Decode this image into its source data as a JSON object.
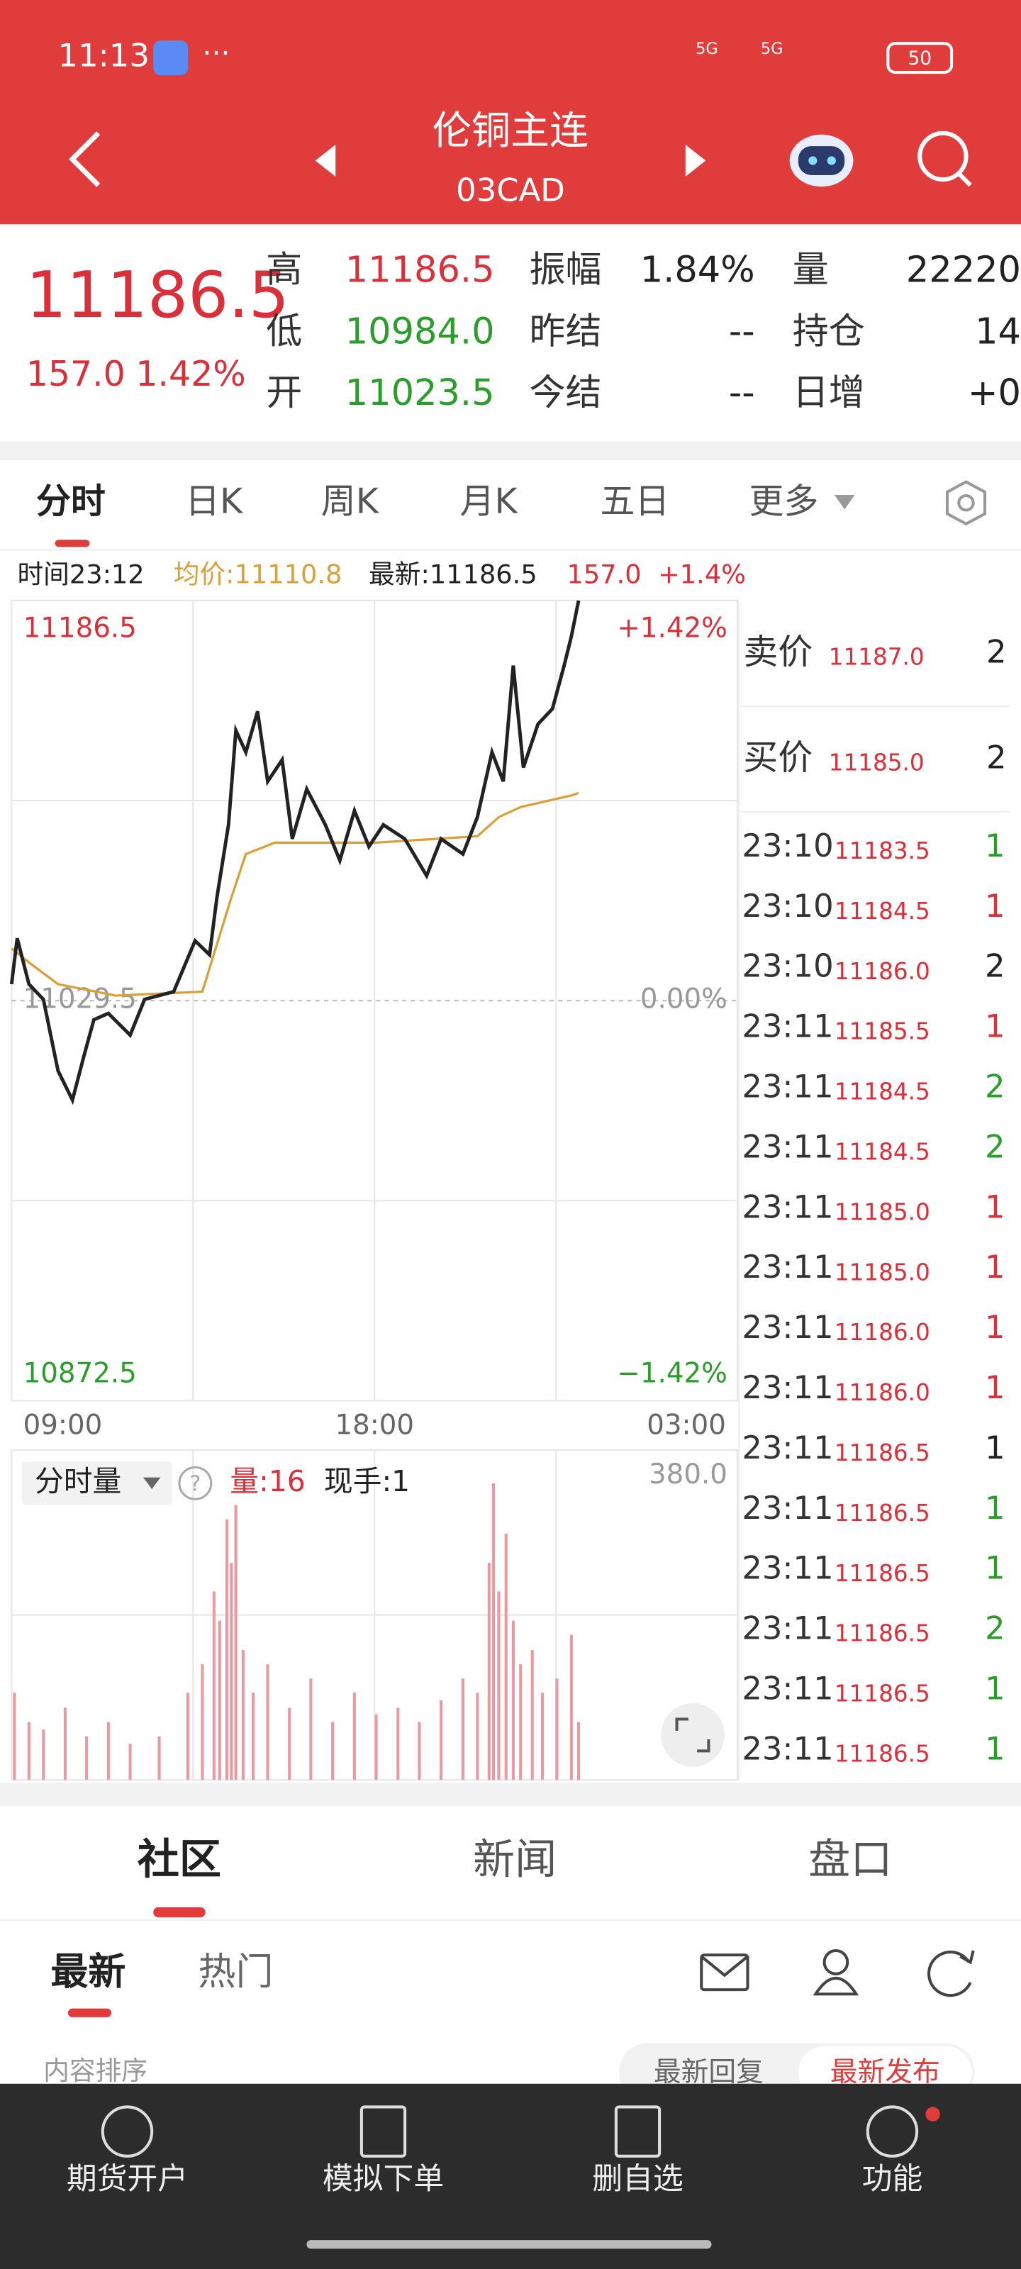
{
  "status_bar": {
    "time": "11:13",
    "network": "5G",
    "network2": "5G",
    "battery": "50"
  },
  "header": {
    "title": "伦铜主连",
    "code": "03CAD"
  },
  "quote": {
    "price": "11186.5",
    "change": "157.0",
    "change_pct": "1.42%",
    "stats": [
      [
        {
          "label": "高",
          "value": "11186.5",
          "color": "#d9303a"
        },
        {
          "label": "振幅",
          "value": "1.84%",
          "color": "#222222"
        },
        {
          "label": "量",
          "value": "22220",
          "color": "#222222"
        }
      ],
      [
        {
          "label": "低",
          "value": "10984.0",
          "color": "#2a9d2a"
        },
        {
          "label": "昨结",
          "value": "--",
          "color": "#222222"
        },
        {
          "label": "持仓",
          "value": "14",
          "color": "#222222"
        }
      ],
      [
        {
          "label": "开",
          "value": "11023.5",
          "color": "#2a9d2a"
        },
        {
          "label": "今结",
          "value": "--",
          "color": "#222222"
        },
        {
          "label": "日增",
          "value": "+0",
          "color": "#222222"
        }
      ]
    ]
  },
  "chart_tabs": [
    "分时",
    "日K",
    "周K",
    "月K",
    "五日",
    "更多"
  ],
  "info_bar": {
    "time": "时间23:12",
    "avg": "均价:11110.8",
    "latest": "最新:11186.5",
    "change": "157.0",
    "change_pct": "+1.4%"
  },
  "chart_data": [
    {
      "type": "line",
      "xlim": [
        0,
        18
      ],
      "xticks": [
        {
          "value": 0,
          "label": "09:00"
        },
        {
          "value": 9,
          "label": "18:00"
        },
        {
          "value": 18,
          "label": "03:00"
        }
      ],
      "ylim": [
        10872.5,
        11186.5
      ],
      "yticks": [
        {
          "value": 11186.5,
          "label": "11186.5"
        },
        {
          "value": 11029.5,
          "label": "11029.5"
        },
        {
          "value": 10872.5,
          "label": "10872.5"
        }
      ],
      "y2lim": [
        -1.42,
        1.42
      ],
      "y2ticks": [
        {
          "value": 1.42,
          "label": "+1.42%"
        },
        {
          "value": 0,
          "label": "0.00%"
        },
        {
          "value": -1.42,
          "label": "−1.42%"
        }
      ],
      "series": [
        {
          "color": "#222222",
          "x": [
            0,
            0.14,
            0.43,
            0.79,
            1.15,
            1.51,
            1.79,
            2.04,
            2.4,
            2.94,
            3.3,
            4.02,
            4.55,
            4.91,
            5.09,
            5.38,
            5.56,
            5.81,
            6.1,
            6.35,
            6.71,
            6.96,
            7.32,
            7.78,
            8.14,
            8.5,
            8.86,
            9.22,
            9.75,
            10.29,
            10.65,
            11.19,
            11.55,
            11.91,
            12.19,
            12.44,
            12.69,
            13.05,
            13.41,
            13.7,
            13.88,
            14.06
          ],
          "values": [
            11036,
            11054,
            11036,
            11030,
            11002,
            10990.5,
            11007.5,
            11022,
            11024.5,
            11016,
            11030,
            11033,
            11053,
            11047.5,
            11070,
            11098.5,
            11135.5,
            11127,
            11143,
            11115.5,
            11124,
            11093,
            11112.5,
            11098.5,
            11084.5,
            11104,
            11090,
            11098.5,
            11093,
            11078.5,
            11093,
            11087,
            11101.5,
            11127,
            11115.5,
            11161,
            11121,
            11138,
            11144,
            11161,
            11172.5,
            11186.5
          ]
        },
        {
          "color": "#d9a03a",
          "x": [
            0,
            0.43,
            1.15,
            2.58,
            4.73,
            5.45,
            5.81,
            6.53,
            9.04,
            11.55,
            12.08,
            12.62,
            13.88,
            14.06
          ],
          "values": [
            11050,
            11044.5,
            11036,
            11031.5,
            11033,
            11070,
            11087,
            11091.5,
            11091.5,
            11094,
            11101.5,
            11105.5,
            11110,
            11111
          ]
        }
      ]
    },
    {
      "type": "bar",
      "xlim": [
        0,
        18
      ],
      "ylim": [
        0,
        380
      ],
      "yticks": [
        {
          "value": 380,
          "label": "380.0"
        }
      ],
      "color": "#e89aa0",
      "x": [
        0.07,
        0.43,
        0.79,
        1.33,
        1.86,
        2.4,
        2.94,
        3.66,
        4.37,
        4.73,
        5.02,
        5.16,
        5.34,
        5.45,
        5.56,
        5.74,
        5.99,
        6.35,
        6.89,
        7.42,
        7.96,
        8.5,
        9.04,
        9.58,
        10.11,
        10.65,
        11.19,
        11.55,
        11.84,
        11.95,
        12.08,
        12.26,
        12.44,
        12.62,
        12.91,
        13.16,
        13.52,
        13.88,
        14.06
      ],
      "values": [
        104,
        69,
        60,
        86,
        52,
        69,
        43,
        52,
        104,
        138,
        225,
        190,
        311,
        259,
        328,
        155,
        104,
        138,
        86,
        121,
        69,
        104,
        78,
        86,
        69,
        95,
        121,
        104,
        259,
        354,
        225,
        294,
        190,
        138,
        155,
        104,
        121,
        173,
        69
      ]
    }
  ],
  "volume_header": {
    "selector": "分时量",
    "help": "?",
    "volume": "量:16",
    "current": "现手:1"
  },
  "order_book": [
    {
      "label": "卖价",
      "price": "11187.0",
      "qty": "2"
    },
    {
      "label": "买价",
      "price": "11185.0",
      "qty": "2"
    }
  ],
  "trades": [
    {
      "time": "23:10",
      "price": "11183.5",
      "qty": "1",
      "color": "#2a9d2a"
    },
    {
      "time": "23:10",
      "price": "11184.5",
      "qty": "1",
      "color": "#d9303a"
    },
    {
      "time": "23:10",
      "price": "11186.0",
      "qty": "2",
      "color": "#222222"
    },
    {
      "time": "23:11",
      "price": "11185.5",
      "qty": "1",
      "color": "#d9303a"
    },
    {
      "time": "23:11",
      "price": "11184.5",
      "qty": "2",
      "color": "#2a9d2a"
    },
    {
      "time": "23:11",
      "price": "11184.5",
      "qty": "2",
      "color": "#2a9d2a"
    },
    {
      "time": "23:11",
      "price": "11185.0",
      "qty": "1",
      "color": "#d9303a"
    },
    {
      "time": "23:11",
      "price": "11185.0",
      "qty": "1",
      "color": "#d9303a"
    },
    {
      "time": "23:11",
      "price": "11186.0",
      "qty": "1",
      "color": "#d9303a"
    },
    {
      "time": "23:11",
      "price": "11186.0",
      "qty": "1",
      "color": "#d9303a"
    },
    {
      "time": "23:11",
      "price": "11186.5",
      "qty": "1",
      "color": "#222222"
    },
    {
      "time": "23:11",
      "price": "11186.5",
      "qty": "1",
      "color": "#2a9d2a"
    },
    {
      "time": "23:11",
      "price": "11186.5",
      "qty": "1",
      "color": "#2a9d2a"
    },
    {
      "time": "23:11",
      "price": "11186.5",
      "qty": "2",
      "color": "#2a9d2a"
    },
    {
      "time": "23:11",
      "price": "11186.5",
      "qty": "1",
      "color": "#2a9d2a"
    },
    {
      "time": "23:11",
      "price": "11186.5",
      "qty": "1",
      "color": "#2a9d2a"
    }
  ],
  "community_tabs": [
    "社区",
    "新闻",
    "盘口"
  ],
  "sub_tabs": [
    "最新",
    "热门"
  ],
  "sort": {
    "label": "内容排序",
    "options": [
      "最新回复",
      "最新发布"
    ]
  },
  "bottom_nav": [
    "期货开户",
    "模拟下单",
    "删自选",
    "功能"
  ]
}
